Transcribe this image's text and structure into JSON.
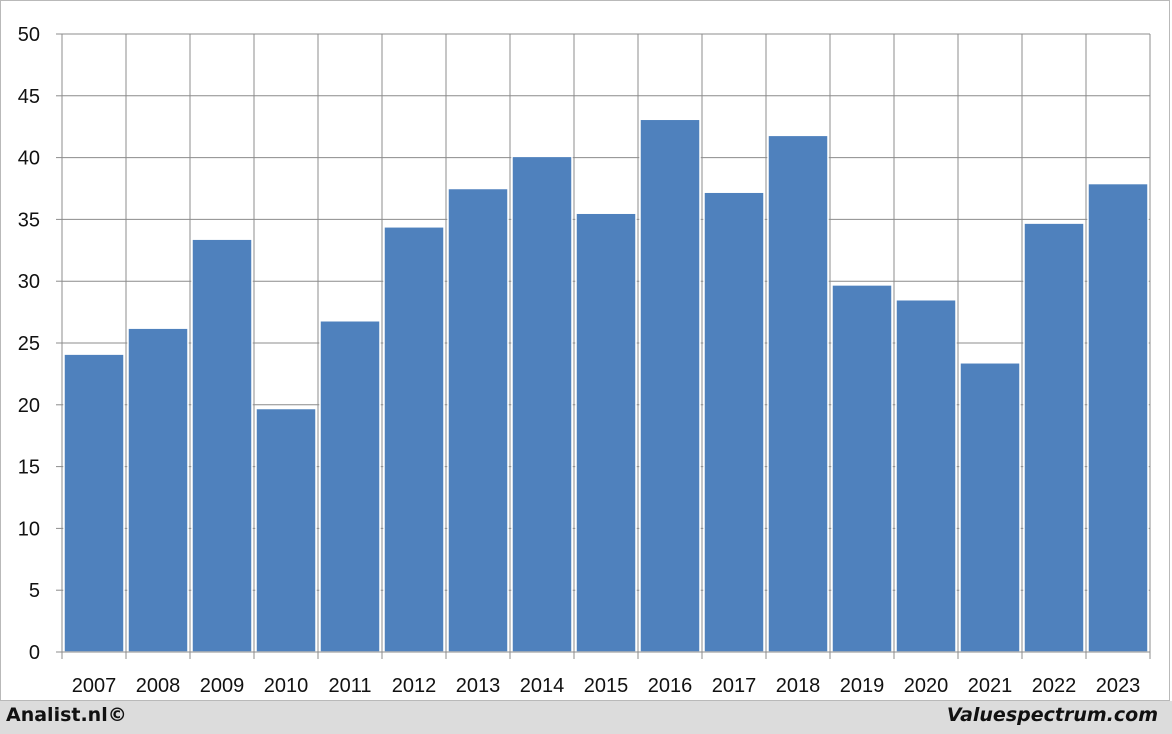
{
  "chart_data": {
    "type": "bar",
    "categories": [
      "2007",
      "2008",
      "2009",
      "2010",
      "2011",
      "2012",
      "2013",
      "2014",
      "2015",
      "2016",
      "2017",
      "2018",
      "2019",
      "2020",
      "2021",
      "2022",
      "2023"
    ],
    "values": [
      24.1,
      26.2,
      33.4,
      19.7,
      26.8,
      34.4,
      37.5,
      40.1,
      35.5,
      43.1,
      37.2,
      41.8,
      29.7,
      28.5,
      23.4,
      34.7,
      37.9
    ],
    "yticks": [
      "0",
      "5",
      "10",
      "15",
      "20",
      "25",
      "30",
      "35",
      "40",
      "45",
      "50"
    ],
    "ylim": [
      0,
      50
    ],
    "grid": true,
    "bar_color": "#4f81bd"
  },
  "footer": {
    "left": "Analist.nl©",
    "right": "Valuespectrum.com"
  }
}
